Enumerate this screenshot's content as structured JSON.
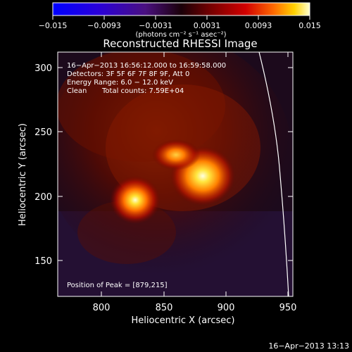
{
  "colorbar": {
    "tick_labels": [
      "−0.015",
      "−0.0093",
      "−0.0031",
      "0.0031",
      "0.0093",
      "0.015"
    ],
    "unit_label": "(photons cm⁻² s⁻¹ asec⁻²)",
    "range": [
      -0.015,
      0.015
    ]
  },
  "image": {
    "title": "Reconstructed RHESSI Image",
    "xlabel": "Heliocentric X (arcsec)",
    "ylabel": "Heliocentric Y (arcsec)",
    "x_ticks": [
      "800",
      "850",
      "900",
      "950"
    ],
    "y_ticks": [
      "150",
      "200",
      "250",
      "300"
    ],
    "xlim": [
      763,
      957
    ],
    "ylim": [
      122,
      312
    ],
    "time_range": "16−Apr−2013 16:56:12.000 to 16:59:58.000",
    "detectors": "Detectors: 3F 5F 6F 7F 8F 9F, Att 0",
    "energy_range": "Energy Range: 6.0 − 12.0 keV",
    "method": "Clean",
    "total_counts": "Total counts: 7.59E+04",
    "peak_position": "Position of Peak = [879,215]",
    "sources": [
      {
        "x": 826,
        "y": 198,
        "peak": 0.013
      },
      {
        "x": 879,
        "y": 215,
        "peak": 0.015
      },
      {
        "x": 862,
        "y": 232,
        "peak": 0.011
      }
    ]
  },
  "footer": {
    "timestamp": "16−Apr−2013 13:13"
  }
}
